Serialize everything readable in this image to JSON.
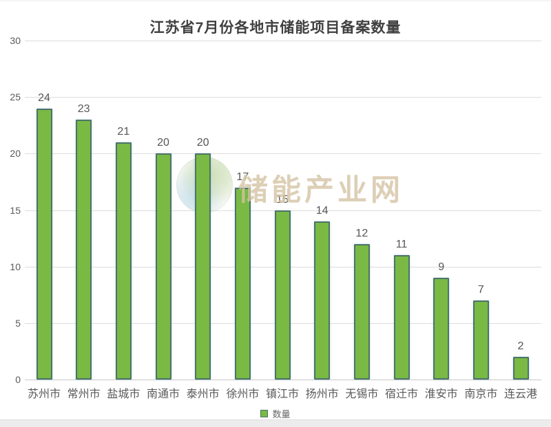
{
  "title": "江苏省7月份各地市储能项目备案数量",
  "watermark": {
    "text": "储能产业网"
  },
  "legend": {
    "label": "数量"
  },
  "colors": {
    "bar_fill": "#79b944",
    "bar_border": "#4a7467",
    "gridline": "#dcdcdc",
    "baseline": "#c6c6c6",
    "axis_text": "#595959",
    "title_text": "#404040",
    "watermark_text": "#d5c4a4"
  },
  "chart_data": {
    "type": "bar",
    "title": "江苏省7月份各地市储能项目备案数量",
    "categories": [
      "苏州市",
      "常州市",
      "盐城市",
      "南通市",
      "泰州市",
      "徐州市",
      "镇江市",
      "扬州市",
      "无锡市",
      "宿迁市",
      "淮安市",
      "南京市",
      "连云港"
    ],
    "values": [
      24,
      23,
      21,
      20,
      20,
      17,
      15,
      14,
      12,
      11,
      9,
      7,
      2
    ],
    "series_name": "数量",
    "xlabel": "",
    "ylabel": "",
    "ylim": [
      0,
      30
    ],
    "yticks": [
      0,
      5,
      10,
      15,
      20,
      25,
      30
    ],
    "grid": true,
    "legend_position": "bottom"
  }
}
